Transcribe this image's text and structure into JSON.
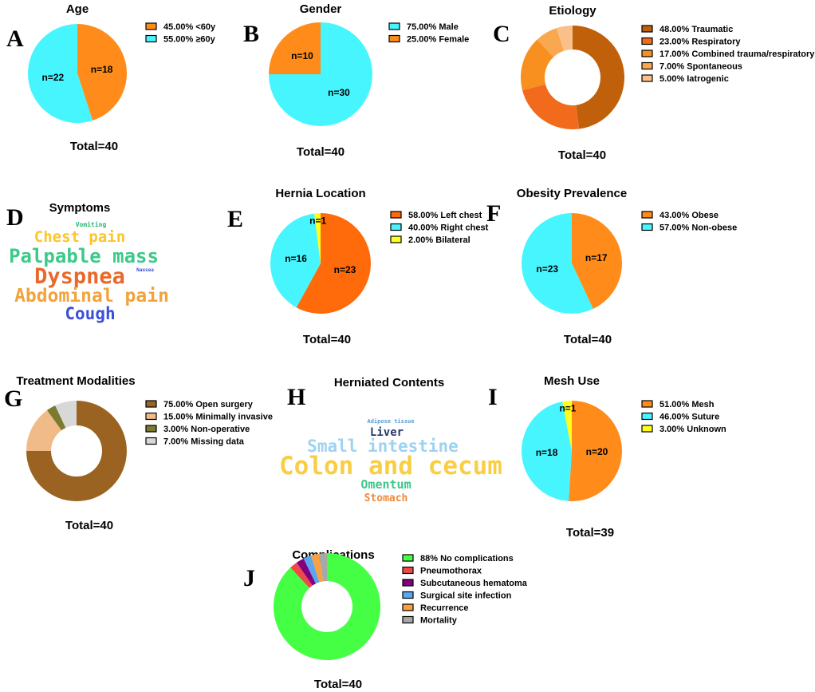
{
  "chart_data": [
    {
      "id": "A",
      "type": "pie",
      "title": "Age",
      "total": "Total=40",
      "series": [
        {
          "label": "45.00% <60y",
          "value": 45,
          "n": "n=18",
          "color": "#FF8C1A"
        },
        {
          "label": "55.00% ≥60y",
          "value": 55,
          "n": "n=22",
          "color": "#47F5FF"
        }
      ]
    },
    {
      "id": "B",
      "type": "pie",
      "title": "Gender",
      "total": "Total=40",
      "series": [
        {
          "label": "75.00% Male",
          "value": 75,
          "n": "n=30",
          "color": "#47F5FF"
        },
        {
          "label": "25.00% Female",
          "value": 25,
          "n": "n=10",
          "color": "#FF8C1A"
        }
      ]
    },
    {
      "id": "C",
      "type": "donut",
      "title": "Etiology",
      "total": "Total=40",
      "series": [
        {
          "label": "48.00% Traumatic",
          "value": 48,
          "color": "#C0600A"
        },
        {
          "label": "23.00% Respiratory",
          "value": 23,
          "color": "#F26A1B"
        },
        {
          "label": "17.00% Combined trauma/respiratory",
          "value": 17,
          "color": "#F7901E"
        },
        {
          "label": "7.00% Spontaneous",
          "value": 7,
          "color": "#F9A850"
        },
        {
          "label": "5.00% Iatrogenic",
          "value": 5,
          "color": "#FBC08A"
        }
      ]
    },
    {
      "id": "D",
      "type": "wordcloud",
      "title": "Symptoms",
      "words": [
        {
          "text": "Vomiting",
          "color": "#2BB673"
        },
        {
          "text": "Chest pain",
          "color": "#F9C62B"
        },
        {
          "text": "Palpable mass",
          "color": "#3CC98A"
        },
        {
          "text": "Nausea",
          "color": "#3B4FD8"
        },
        {
          "text": "Dyspnea",
          "color": "#E8692A"
        },
        {
          "text": "Abdominal pain",
          "color": "#F2A33A"
        },
        {
          "text": "Cough",
          "color": "#3B4FD8"
        }
      ]
    },
    {
      "id": "E",
      "type": "pie",
      "title": "Hernia Location",
      "total": "Total=40",
      "series": [
        {
          "label": "58.00% Left chest",
          "value": 58,
          "n": "n=23",
          "color": "#FF6A0A"
        },
        {
          "label": "40.00% Right chest",
          "value": 40,
          "n": "n=16",
          "color": "#47F5FF"
        },
        {
          "label": "2.00% Bilateral",
          "value": 2,
          "n": "n=1",
          "color": "#FFFF1A"
        }
      ]
    },
    {
      "id": "F",
      "type": "pie",
      "title": "Obesity Prevalence",
      "total": "Total=40",
      "series": [
        {
          "label": "43.00% Obese",
          "value": 43,
          "n": "n=17",
          "color": "#FF8C1A"
        },
        {
          "label": "57.00% Non-obese",
          "value": 57,
          "n": "n=23",
          "color": "#47F5FF"
        }
      ]
    },
    {
      "id": "G",
      "type": "donut",
      "title": "Treatment Modalities",
      "total": "Total=40",
      "series": [
        {
          "label": "75.00% Open surgery",
          "value": 75,
          "color": "#9A6321"
        },
        {
          "label": "15.00% Minimally invasive",
          "value": 15,
          "color": "#F0BB88"
        },
        {
          "label": "3.00% Non-operative",
          "value": 3,
          "color": "#7A7A30"
        },
        {
          "label": "7.00% Missing data",
          "value": 7,
          "color": "#D8D8D8"
        }
      ]
    },
    {
      "id": "H",
      "type": "wordcloud",
      "title": "Herniated Contents",
      "words": [
        {
          "text": "Adipose tissue",
          "color": "#5B9BD5"
        },
        {
          "text": "Liver",
          "color": "#2A3A6A"
        },
        {
          "text": "Small intestine",
          "color": "#9DD3F2"
        },
        {
          "text": "Colon and cecum",
          "color": "#F9CE45"
        },
        {
          "text": "Omentum",
          "color": "#3CC98A"
        },
        {
          "text": "Stomach",
          "color": "#F08A3A"
        }
      ]
    },
    {
      "id": "I",
      "type": "pie",
      "title": "Mesh Use",
      "total": "Total=39",
      "series": [
        {
          "label": "51.00% Mesh",
          "value": 51,
          "n": "n=20",
          "color": "#FF8C1A"
        },
        {
          "label": "46.00% Suture",
          "value": 46,
          "n": "n=18",
          "color": "#47F5FF"
        },
        {
          "label": "3.00% Unknown",
          "value": 3,
          "n": "n=1",
          "color": "#FFFF1A"
        }
      ]
    },
    {
      "id": "J",
      "type": "donut",
      "title": "Complications",
      "total": "Total=40",
      "series": [
        {
          "label": "88% No complications",
          "value": 88,
          "color": "#44FF44"
        },
        {
          "label": "Pneumothorax",
          "value": 2.4,
          "color": "#F04848"
        },
        {
          "label": "Subcutaneous hematoma",
          "value": 2.4,
          "color": "#800080"
        },
        {
          "label": "Surgical site infection",
          "value": 2.4,
          "color": "#5AA7F0"
        },
        {
          "label": "Recurrence",
          "value": 2.4,
          "color": "#F9A040"
        },
        {
          "label": "Mortality",
          "value": 2.4,
          "color": "#A8A8A8"
        }
      ]
    }
  ]
}
